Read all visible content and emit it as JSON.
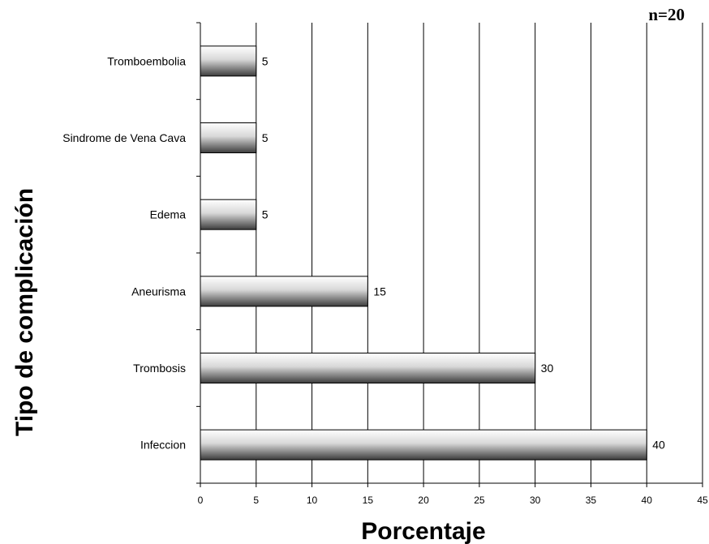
{
  "chart_data": {
    "type": "bar",
    "orientation": "horizontal",
    "note": "n=20",
    "title": "",
    "xlabel": "Porcentaje",
    "ylabel": "Tipo de complicación",
    "categories": [
      "Tromboembolia",
      "Sindrome de Vena Cava",
      "Edema",
      "Aneurisma",
      "Trombosis",
      "Infeccion"
    ],
    "values": [
      5,
      5,
      5,
      15,
      30,
      40
    ],
    "xlim": [
      0,
      45
    ],
    "xticks": [
      0,
      5,
      10,
      15,
      20,
      25,
      30,
      35,
      40,
      45
    ],
    "grid": "vertical",
    "legend": "none",
    "colors": {
      "bar_edge": "#000000",
      "bar_light": "#ffffff",
      "bar_dark": "#3c3c3c",
      "grid": "#000000"
    }
  }
}
